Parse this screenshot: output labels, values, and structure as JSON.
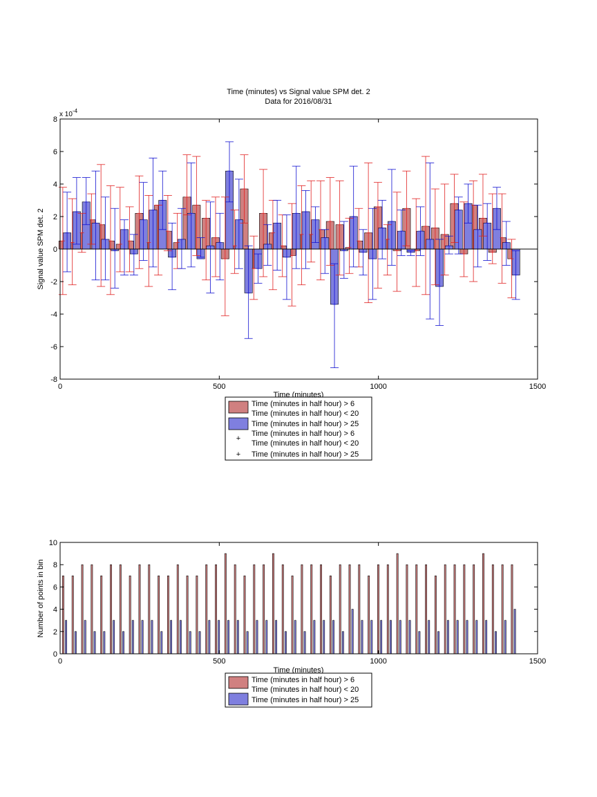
{
  "colors": {
    "red_fill": "#d08080",
    "blue_fill": "#7f7fdf",
    "red_line": "#e02020",
    "blue_line": "#1010d0",
    "axis": "#000000"
  },
  "chart_data": [
    {
      "type": "bar",
      "title": "Time (minutes) vs Signal value SPM det. 2",
      "subtitle": "Data for 2016/08/31",
      "xlabel": "Time (minutes)",
      "ylabel": "Signal value SPM det. 2",
      "exponent_label": "x 10",
      "exponent_power": "-4",
      "xlim": [
        0,
        1500
      ],
      "ylim": [
        -8,
        8
      ],
      "xticks": [
        0,
        500,
        1000,
        1500
      ],
      "yticks": [
        -8,
        -6,
        -4,
        -2,
        0,
        2,
        4,
        6,
        8
      ],
      "grid": false,
      "legend_position": "below",
      "legend": [
        {
          "kind": "patch",
          "color": "red",
          "lines": [
            "Time (minutes in half hour) > 6",
            "Time (minutes in half hour) < 20"
          ]
        },
        {
          "kind": "patch",
          "color": "blue",
          "lines": [
            "Time (minutes in half hour) > 25"
          ]
        },
        {
          "kind": "marker",
          "color": "red",
          "lines": [
            "Time (minutes in half hour) > 6",
            "Time (minutes in half hour) < 20"
          ]
        },
        {
          "kind": "marker",
          "color": "blue",
          "lines": [
            "Time (minutes in half hour) > 25"
          ]
        }
      ],
      "x": [
        15,
        45,
        75,
        105,
        135,
        165,
        195,
        225,
        255,
        285,
        315,
        345,
        375,
        405,
        435,
        465,
        495,
        525,
        555,
        585,
        615,
        645,
        675,
        705,
        735,
        765,
        795,
        825,
        855,
        885,
        915,
        945,
        975,
        1005,
        1035,
        1065,
        1095,
        1125,
        1155,
        1185,
        1215,
        1245,
        1275,
        1305,
        1335,
        1365,
        1395,
        1425
      ],
      "series": [
        {
          "values": [
            0.5,
            0.4,
            1.0,
            1.8,
            1.5,
            0.5,
            0.3,
            0.5,
            2.2,
            0.4,
            2.7,
            1.1,
            0.4,
            3.2,
            2.7,
            1.9,
            0.7,
            -0.6,
            0.2,
            3.7,
            -1.2,
            2.2,
            1.0,
            0.2,
            -0.4,
            0.9,
            0.9,
            1.2,
            1.7,
            1.5,
            0.1,
            0.5,
            1.0,
            2.6,
            0.6,
            -0.1,
            2.5,
            -0.1,
            1.4,
            1.3,
            0.9,
            2.8,
            -0.3,
            2.7,
            1.9,
            -0.2,
            0.7,
            -0.6
          ],
          "err_low": [
            -2.8,
            -2.2,
            -0.2,
            0.3,
            -2.3,
            -2.8,
            -1.4,
            -1.4,
            -1.2,
            -2.3,
            -1.6,
            -0.1,
            -1.2,
            2.1,
            -0.4,
            -1.9,
            -1.7,
            -4.1,
            -1.5,
            1.6,
            -3.1,
            -1.7,
            -2.5,
            -1.7,
            -3.5,
            -2.2,
            -0.8,
            -1.9,
            -1.0,
            -1.6,
            -1.5,
            -1.1,
            -3.3,
            -2.4,
            -1.6,
            -2.6,
            0.2,
            -2.3,
            -2.8,
            -2.2,
            -1.6,
            0.4,
            -1.7,
            -2.0,
            0.8,
            -0.9,
            -2.1,
            -3.0
          ],
          "err_high": [
            3.8,
            3.1,
            2.2,
            3.4,
            5.2,
            3.9,
            3.8,
            2.6,
            4.5,
            3.3,
            2.7,
            3.3,
            2.2,
            5.8,
            5.7,
            3.0,
            3.2,
            3.2,
            2.4,
            5.8,
            0.8,
            4.9,
            3.0,
            2.1,
            2.8,
            3.9,
            4.2,
            4.2,
            4.4,
            4.2,
            1.9,
            2.5,
            5.3,
            4.1,
            1.5,
            3.5,
            4.8,
            3.1,
            5.7,
            3.7,
            4.0,
            4.6,
            2.9,
            4.2,
            4.6,
            3.4,
            3.4,
            0.6
          ]
        },
        {
          "values": [
            1.0,
            2.3,
            2.9,
            1.6,
            0.6,
            -0.1,
            1.2,
            -0.3,
            1.8,
            2.4,
            3.0,
            -0.5,
            0.6,
            2.2,
            -0.6,
            0.2,
            0.4,
            4.8,
            1.8,
            -2.7,
            -1.2,
            0.3,
            1.6,
            -0.5,
            2.2,
            2.3,
            1.8,
            0.7,
            -3.4,
            -0.1,
            2.0,
            -0.2,
            -0.6,
            1.3,
            1.7,
            1.1,
            -0.2,
            1.1,
            0.6,
            -2.3,
            0.2,
            2.4,
            2.8,
            1.2,
            1.6,
            2.5,
            0.4,
            -1.6
          ],
          "err_low": [
            -1.4,
            0.3,
            1.5,
            -1.9,
            -1.9,
            -2.4,
            -1.6,
            -1.6,
            -0.7,
            -1.1,
            1.2,
            -2.5,
            -1.2,
            -1.1,
            -0.5,
            -2.7,
            -1.9,
            2.9,
            -1.2,
            -5.5,
            -2.1,
            -1.0,
            -1.3,
            -3.1,
            -1.2,
            -1.2,
            0.4,
            -1.5,
            -7.3,
            -1.8,
            -1.1,
            -1.6,
            -3.1,
            -0.6,
            -1.0,
            -0.4,
            -0.4,
            -0.4,
            -4.3,
            -4.7,
            -0.3,
            -0.3,
            1.6,
            -1.1,
            -0.7,
            1.2,
            -1.0,
            -3.1
          ],
          "err_high": [
            3.5,
            4.4,
            4.4,
            4.8,
            3.2,
            2.5,
            1.8,
            0.9,
            4.1,
            5.6,
            4.8,
            1.6,
            2.5,
            5.3,
            0.7,
            2.9,
            2.2,
            6.6,
            4.3,
            0.2,
            -0.3,
            1.5,
            3.0,
            2.1,
            5.1,
            3.6,
            2.6,
            1.2,
            -0.9,
            1.7,
            5.1,
            1.2,
            2.5,
            3.0,
            4.9,
            2.4,
            -0.1,
            2.6,
            5.3,
            0.6,
            0.8,
            3.2,
            4.0,
            2.7,
            2.8,
            3.8,
            1.7,
            -0.1
          ]
        }
      ]
    },
    {
      "type": "bar",
      "xlabel": "Time (minutes)",
      "ylabel": "Number of points in bin",
      "xlim": [
        0,
        1500
      ],
      "ylim": [
        0,
        10
      ],
      "xticks": [
        0,
        500,
        1000,
        1500
      ],
      "yticks": [
        0,
        2,
        4,
        6,
        8,
        10
      ],
      "grid": false,
      "legend_position": "below",
      "legend": [
        {
          "kind": "patch",
          "color": "red",
          "lines": [
            "Time (minutes in half hour) > 6",
            "Time (minutes in half hour) < 20"
          ]
        },
        {
          "kind": "patch",
          "color": "blue",
          "lines": [
            "Time (minutes in half hour) > 25"
          ]
        }
      ],
      "x": [
        15,
        45,
        75,
        105,
        135,
        165,
        195,
        225,
        255,
        285,
        315,
        345,
        375,
        405,
        435,
        465,
        495,
        525,
        555,
        585,
        615,
        645,
        675,
        705,
        735,
        765,
        795,
        825,
        855,
        885,
        915,
        945,
        975,
        1005,
        1035,
        1065,
        1095,
        1125,
        1155,
        1185,
        1215,
        1245,
        1275,
        1305,
        1335,
        1365,
        1395,
        1425
      ],
      "series": [
        {
          "values": [
            7,
            7,
            8,
            8,
            7,
            8,
            8,
            7,
            8,
            8,
            7,
            7,
            8,
            7,
            7,
            8,
            8,
            9,
            8,
            7,
            8,
            8,
            9,
            8,
            7,
            8,
            8,
            8,
            7,
            8,
            8,
            8,
            7,
            8,
            8,
            9,
            8,
            8,
            8,
            7,
            8,
            8,
            8,
            8,
            9,
            8,
            8,
            8
          ]
        },
        {
          "values": [
            3,
            2,
            3,
            2,
            2,
            3,
            2,
            3,
            3,
            3,
            2,
            3,
            3,
            2,
            2,
            3,
            3,
            3,
            3,
            2,
            3,
            3,
            3,
            2,
            3,
            2,
            3,
            3,
            3,
            2,
            4,
            3,
            3,
            3,
            3,
            3,
            3,
            2,
            3,
            2,
            3,
            3,
            3,
            3,
            3,
            2,
            3,
            4
          ]
        }
      ]
    }
  ]
}
